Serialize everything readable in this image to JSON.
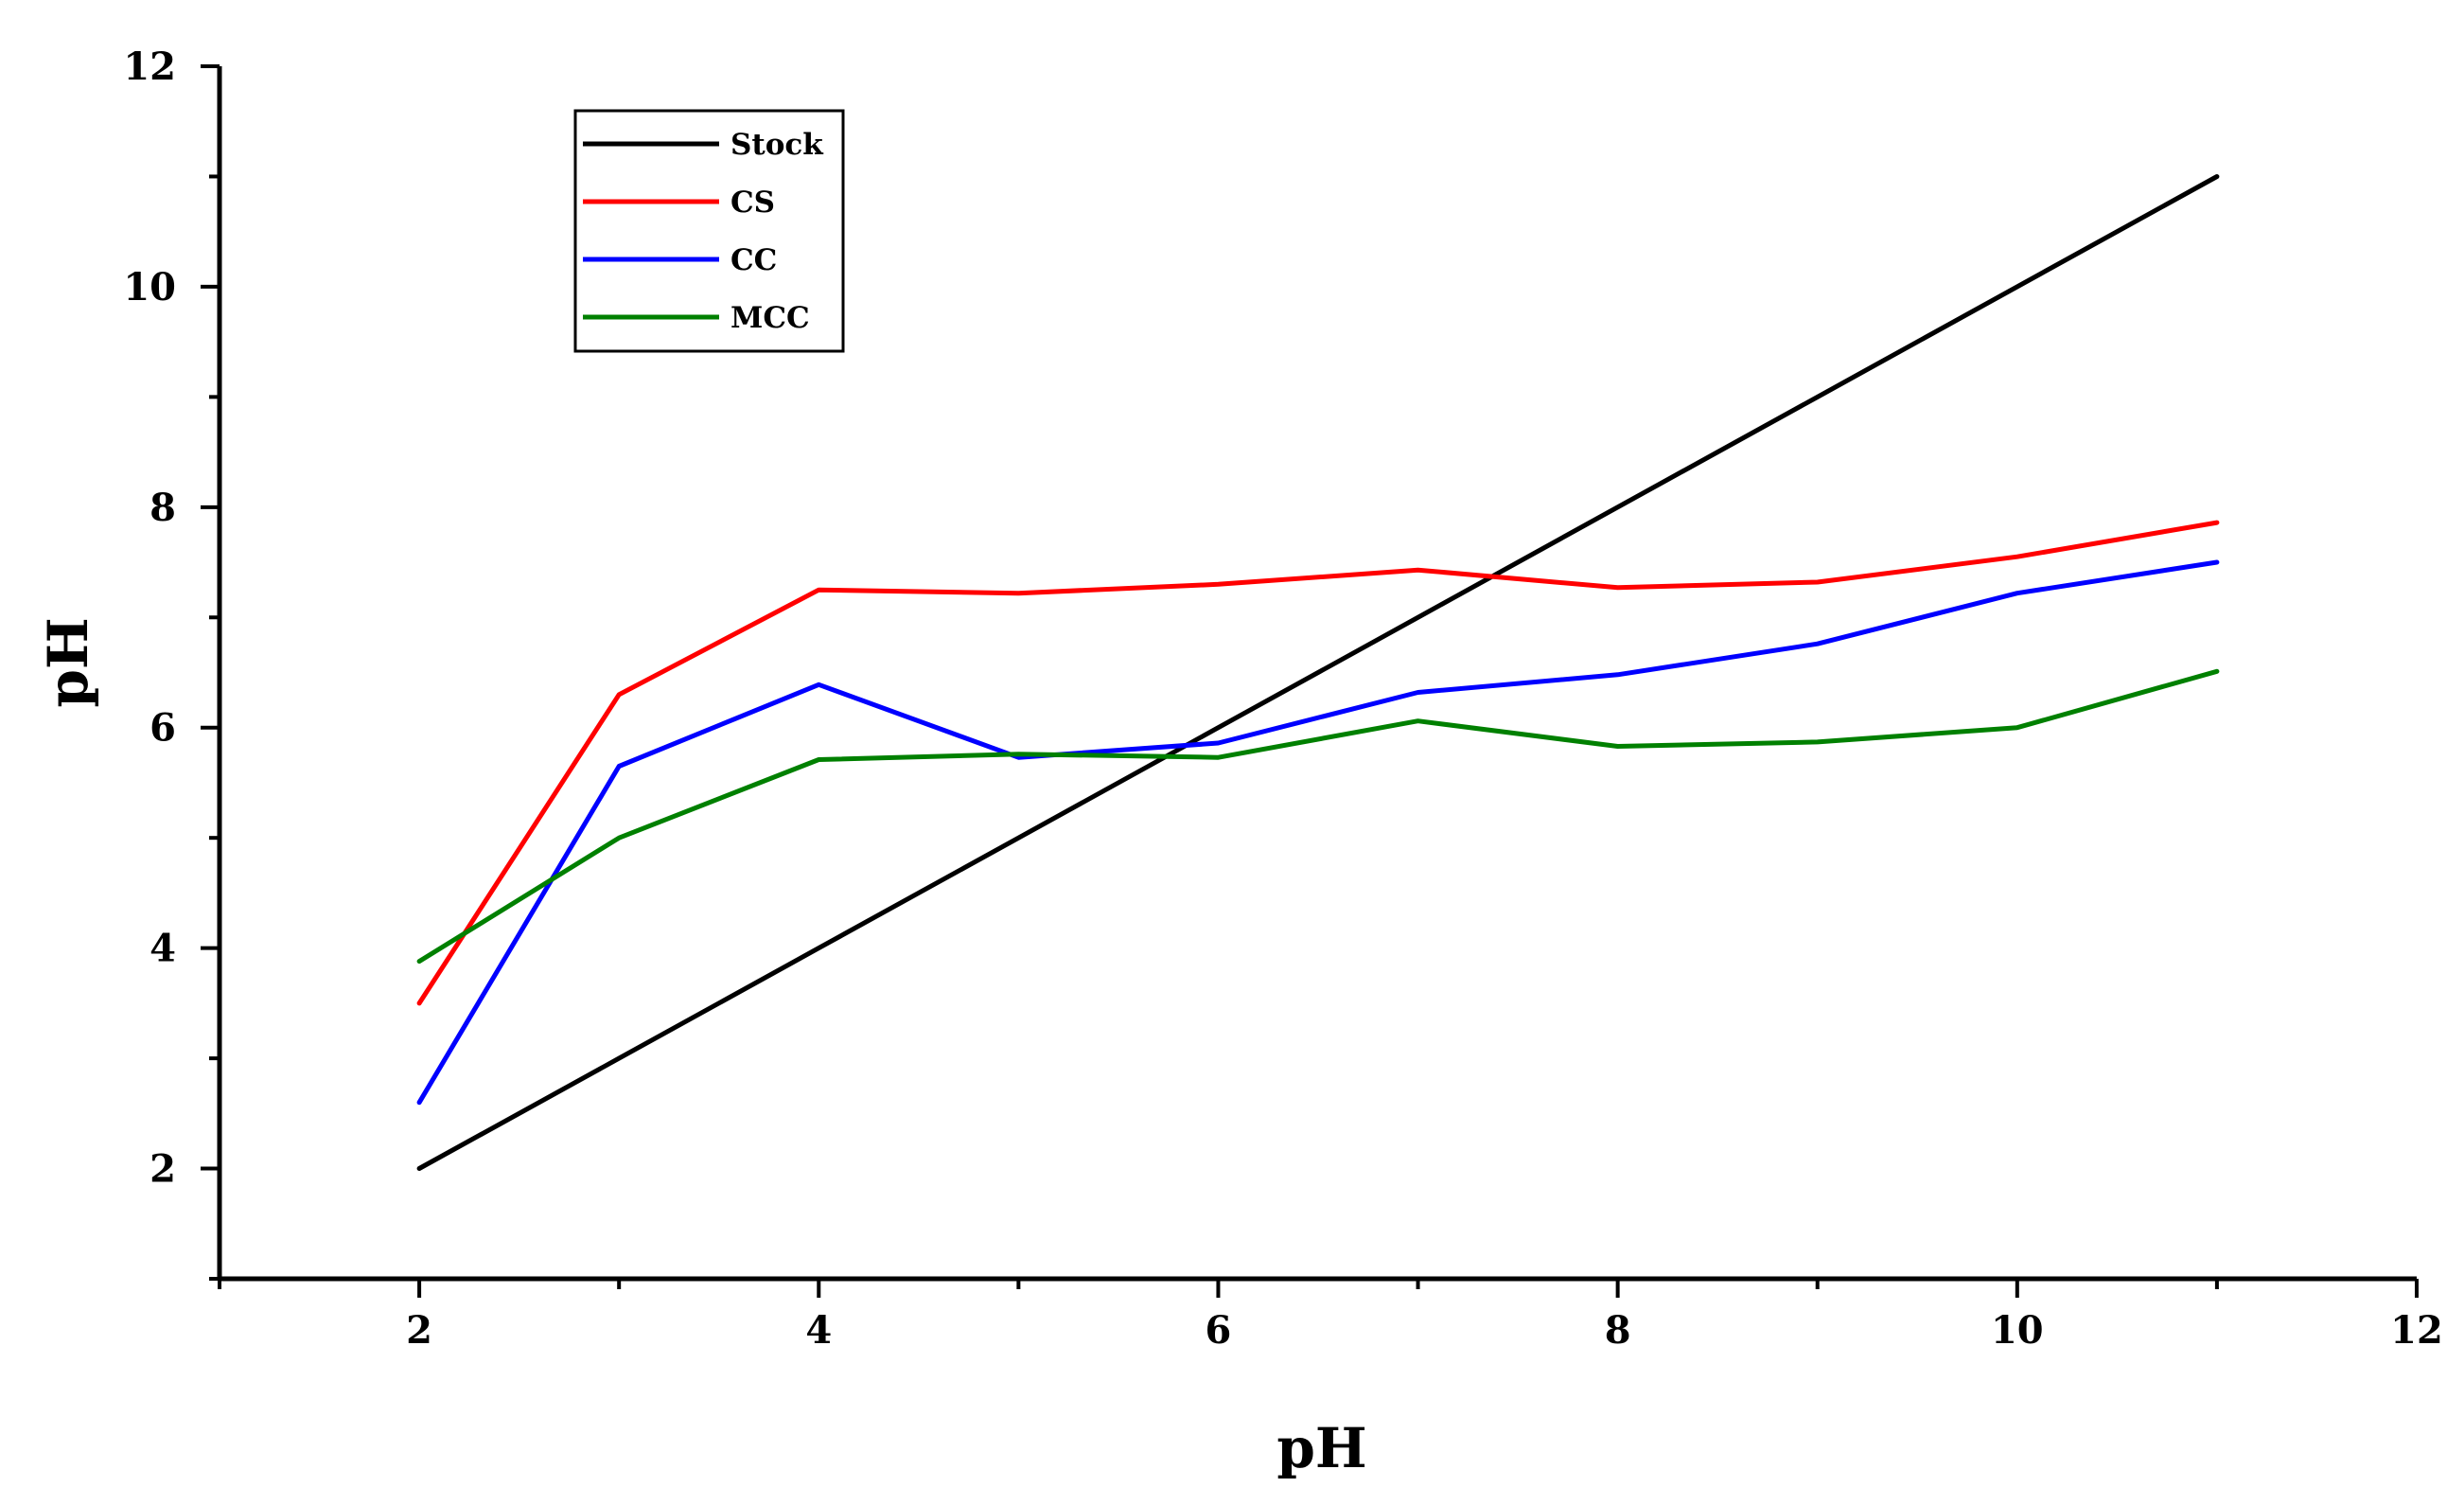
{
  "chart_data": {
    "type": "line",
    "title": "",
    "xlabel": "pH",
    "ylabel": "pH",
    "xlim": [
      1,
      12
    ],
    "ylim": [
      1,
      12
    ],
    "x_ticks": [
      2,
      4,
      6,
      8,
      10,
      12
    ],
    "y_ticks": [
      2,
      4,
      6,
      8,
      10,
      12
    ],
    "x_tick_labels": [
      "2",
      "4",
      "6",
      "8",
      "10",
      "12"
    ],
    "y_tick_labels": [
      "2",
      "4",
      "6",
      "8",
      "10",
      "12"
    ],
    "grid": false,
    "legend_position": "top-left",
    "x": [
      2,
      3,
      4,
      5,
      6,
      7,
      8,
      9,
      10,
      11
    ],
    "series": [
      {
        "name": "Stock",
        "color": "#000000",
        "values": [
          2,
          3,
          4,
          5,
          6,
          7,
          8,
          9,
          10,
          11
        ]
      },
      {
        "name": "CS",
        "color": "#ff0000",
        "values": [
          3.5,
          6.3,
          7.25,
          7.22,
          7.3,
          7.43,
          7.27,
          7.32,
          7.55,
          7.86
        ]
      },
      {
        "name": "CC",
        "color": "#0000ff",
        "values": [
          2.6,
          5.65,
          6.39,
          5.73,
          5.86,
          6.32,
          6.48,
          6.76,
          7.22,
          7.5
        ]
      },
      {
        "name": "MCC",
        "color": "#008000",
        "values": [
          3.88,
          5.0,
          5.71,
          5.76,
          5.73,
          6.06,
          5.83,
          5.87,
          6.0,
          6.51
        ]
      }
    ]
  }
}
